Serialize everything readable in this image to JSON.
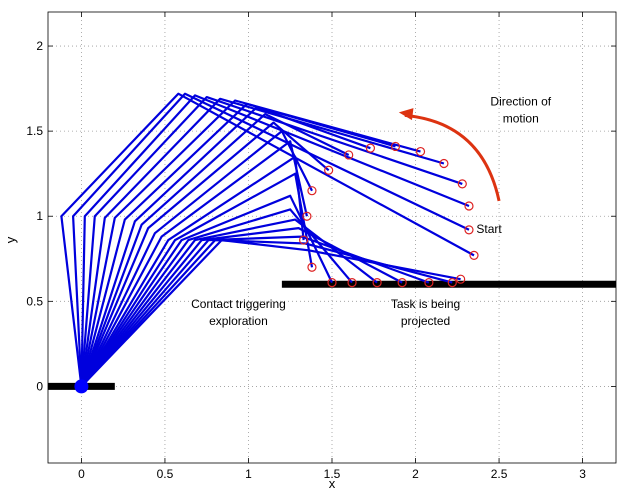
{
  "chart_data": {
    "type": "line",
    "title": "",
    "xlabel": "x",
    "ylabel": "y",
    "xlim": [
      -0.2,
      3.2
    ],
    "ylim": [
      -0.45,
      2.2
    ],
    "xticks": [
      "0",
      "0.5",
      "1",
      "1.5",
      "2",
      "2.5",
      "3"
    ],
    "xtick_values": [
      0,
      0.5,
      1,
      1.5,
      2,
      2.5,
      3
    ],
    "yticks": [
      "0",
      "0.5",
      "1",
      "1.5",
      "2"
    ],
    "ytick_values": [
      0,
      0.5,
      1,
      1.5,
      2
    ],
    "grid": true,
    "colors": {
      "arm": "#0000dd",
      "endpoint": "#dd2222",
      "arrow": "#dd3311",
      "surface": "#000000",
      "base": "#0000ff"
    },
    "base": {
      "x": 0,
      "y": 0
    },
    "base_surface": {
      "x": [
        -0.2,
        0.2
      ],
      "y": 0
    },
    "task_surface": {
      "x": [
        1.2,
        3.2
      ],
      "y": 0.6
    },
    "configurations": [
      {
        "joints": [
          [
            0,
            0
          ],
          [
            -0.12,
            1.0
          ],
          [
            0.58,
            1.72
          ],
          [
            2.35,
            0.77
          ]
        ]
      },
      {
        "joints": [
          [
            0,
            0
          ],
          [
            -0.05,
            1.0
          ],
          [
            0.62,
            1.72
          ],
          [
            2.32,
            0.92
          ]
        ]
      },
      {
        "joints": [
          [
            0,
            0
          ],
          [
            0.02,
            1.0
          ],
          [
            0.68,
            1.71
          ],
          [
            2.32,
            1.06
          ]
        ]
      },
      {
        "joints": [
          [
            0,
            0
          ],
          [
            0.08,
            1.0
          ],
          [
            0.75,
            1.7
          ],
          [
            2.28,
            1.19
          ]
        ]
      },
      {
        "joints": [
          [
            0,
            0
          ],
          [
            0.14,
            0.99
          ],
          [
            0.83,
            1.69
          ],
          [
            2.17,
            1.31
          ]
        ]
      },
      {
        "joints": [
          [
            0,
            0
          ],
          [
            0.2,
            0.99
          ],
          [
            0.92,
            1.68
          ],
          [
            2.03,
            1.38
          ]
        ]
      },
      {
        "joints": [
          [
            0,
            0
          ],
          [
            0.26,
            0.98
          ],
          [
            0.99,
            1.66
          ],
          [
            1.88,
            1.41
          ]
        ]
      },
      {
        "joints": [
          [
            0,
            0
          ],
          [
            0.32,
            0.97
          ],
          [
            1.05,
            1.64
          ],
          [
            1.73,
            1.4
          ]
        ]
      },
      {
        "joints": [
          [
            0,
            0
          ],
          [
            0.36,
            0.95
          ],
          [
            1.1,
            1.6
          ],
          [
            1.6,
            1.36
          ]
        ]
      },
      {
        "joints": [
          [
            0,
            0
          ],
          [
            0.4,
            0.93
          ],
          [
            1.15,
            1.55
          ],
          [
            1.48,
            1.27
          ]
        ]
      },
      {
        "joints": [
          [
            0,
            0
          ],
          [
            0.44,
            0.9
          ],
          [
            1.2,
            1.5
          ],
          [
            1.38,
            1.15
          ]
        ]
      },
      {
        "joints": [
          [
            0,
            0
          ],
          [
            0.48,
            0.88
          ],
          [
            1.25,
            1.44
          ],
          [
            1.35,
            1.0
          ]
        ]
      },
      {
        "joints": [
          [
            0,
            0
          ],
          [
            0.52,
            0.86
          ],
          [
            1.28,
            1.35
          ],
          [
            1.33,
            0.86
          ]
        ]
      },
      {
        "joints": [
          [
            0,
            0
          ],
          [
            0.56,
            0.86
          ],
          [
            1.28,
            1.25
          ],
          [
            1.38,
            0.7
          ]
        ]
      },
      {
        "joints": [
          [
            0,
            0
          ],
          [
            0.6,
            0.86
          ],
          [
            1.25,
            1.12
          ],
          [
            1.5,
            0.61
          ]
        ]
      },
      {
        "joints": [
          [
            0,
            0
          ],
          [
            0.64,
            0.86
          ],
          [
            1.25,
            1.04
          ],
          [
            1.62,
            0.61
          ]
        ]
      },
      {
        "joints": [
          [
            0,
            0
          ],
          [
            0.68,
            0.86
          ],
          [
            1.28,
            0.98
          ],
          [
            1.77,
            0.61
          ]
        ]
      },
      {
        "joints": [
          [
            0,
            0
          ],
          [
            0.72,
            0.86
          ],
          [
            1.3,
            0.93
          ],
          [
            1.92,
            0.61
          ]
        ]
      },
      {
        "joints": [
          [
            0,
            0
          ],
          [
            0.76,
            0.86
          ],
          [
            1.32,
            0.88
          ],
          [
            2.08,
            0.61
          ]
        ]
      },
      {
        "joints": [
          [
            0,
            0
          ],
          [
            0.8,
            0.86
          ],
          [
            1.34,
            0.84
          ],
          [
            2.22,
            0.61
          ]
        ]
      },
      {
        "joints": [
          [
            0,
            0
          ],
          [
            0.84,
            0.86
          ],
          [
            1.36,
            0.8
          ],
          [
            2.27,
            0.63
          ]
        ]
      }
    ],
    "endpoints": [
      [
        2.35,
        0.77
      ],
      [
        2.32,
        0.92
      ],
      [
        2.32,
        1.06
      ],
      [
        2.28,
        1.19
      ],
      [
        2.17,
        1.31
      ],
      [
        2.03,
        1.38
      ],
      [
        1.88,
        1.41
      ],
      [
        1.73,
        1.4
      ],
      [
        1.6,
        1.36
      ],
      [
        1.48,
        1.27
      ],
      [
        1.38,
        1.15
      ],
      [
        1.35,
        1.0
      ],
      [
        1.33,
        0.86
      ],
      [
        1.38,
        0.7
      ],
      [
        1.5,
        0.61
      ],
      [
        1.62,
        0.61
      ],
      [
        1.77,
        0.61
      ],
      [
        1.92,
        0.61
      ],
      [
        2.08,
        0.61
      ],
      [
        2.22,
        0.61
      ],
      [
        2.27,
        0.63
      ]
    ],
    "annotations": [
      {
        "text_lines": [
          "Direction of",
          "motion"
        ],
        "x": 2.63,
        "y": 1.65
      },
      {
        "text_lines": [
          "Start"
        ],
        "x": 2.44,
        "y": 0.9
      },
      {
        "text_lines": [
          "Contact triggering",
          "exploration"
        ],
        "x": 0.94,
        "y": 0.46
      },
      {
        "text_lines": [
          "Task is being",
          "projected"
        ],
        "x": 2.06,
        "y": 0.46
      }
    ],
    "arrow": {
      "from": [
        2.5,
        1.09
      ],
      "to": [
        1.9,
        1.61
      ],
      "control": [
        2.4,
        1.55
      ]
    }
  }
}
